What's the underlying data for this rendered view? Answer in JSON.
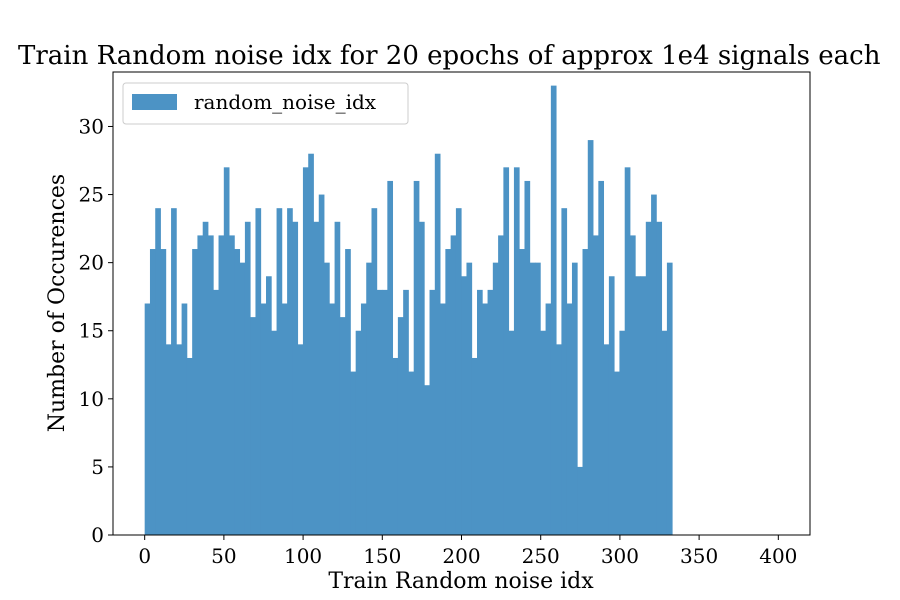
{
  "colors": {
    "bar": "#4c93c5",
    "axis": "#000000",
    "background": "#ffffff",
    "legend_border": "#cccccc"
  },
  "chart_data": {
    "type": "bar",
    "title": "Train Random noise idx for 20 epochs of approx 1e4 signals each",
    "xlabel": "Train Random noise idx",
    "ylabel": "Number of Occurences",
    "xlim": [
      -20,
      420
    ],
    "ylim": [
      0,
      34
    ],
    "xticks": [
      0,
      50,
      100,
      150,
      200,
      250,
      300,
      350,
      400
    ],
    "yticks": [
      0,
      5,
      10,
      15,
      20,
      25,
      30
    ],
    "bin_start": 0,
    "bin_width": 3.33,
    "grid": false,
    "legend": {
      "position": "top-left",
      "entries": [
        "random_noise_idx"
      ]
    },
    "series": [
      {
        "name": "random_noise_idx",
        "values": [
          17,
          21,
          24,
          21,
          14,
          24,
          14,
          17,
          13,
          21,
          22,
          23,
          22,
          18,
          22,
          27,
          22,
          21,
          20,
          23,
          16,
          24,
          17,
          19,
          15,
          24,
          17,
          24,
          23,
          14,
          27,
          28,
          23,
          25,
          20,
          17,
          23,
          16,
          21,
          12,
          15,
          17,
          20,
          24,
          18,
          18,
          26,
          13,
          16,
          18,
          12,
          26,
          23,
          11,
          18,
          28,
          17,
          21,
          22,
          24,
          19,
          20,
          13,
          18,
          17,
          18,
          20,
          22,
          27,
          15,
          27,
          21,
          26,
          20,
          20,
          15,
          17,
          33,
          14,
          24,
          17,
          20,
          5,
          21,
          29,
          22,
          26,
          14,
          19,
          12,
          15,
          27,
          22,
          19,
          19,
          23,
          25,
          23,
          15,
          20
        ]
      }
    ]
  }
}
